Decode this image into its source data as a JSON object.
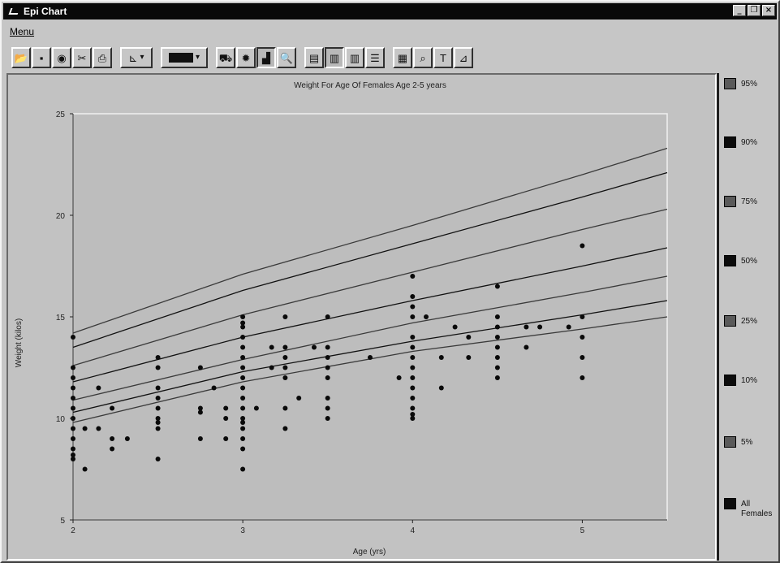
{
  "window": {
    "title": "Epi Chart",
    "minimize_glyph": "_",
    "restore_glyph": "❐",
    "close_glyph": "×"
  },
  "menu": {
    "label": "Menu"
  },
  "toolbar": {
    "buttons": [
      {
        "icon": "open-folder-icon",
        "glyph": "📂"
      },
      {
        "icon": "save-disk-icon",
        "glyph": "▪"
      },
      {
        "icon": "view-icon",
        "glyph": "◉"
      },
      {
        "icon": "cut-scissors-icon",
        "glyph": "✂"
      },
      {
        "icon": "print-icon",
        "glyph": "⎙"
      },
      {
        "icon": "axis-style-icon",
        "glyph": "⊾"
      },
      {
        "icon": "fill-color-icon",
        "glyph": ""
      },
      {
        "icon": "car-icon",
        "glyph": "⛟"
      },
      {
        "icon": "map-icon",
        "glyph": "✹"
      },
      {
        "icon": "chart-type-icon",
        "glyph": "▟"
      },
      {
        "icon": "zoom-page-icon",
        "glyph": "🔍"
      },
      {
        "icon": "page-icon",
        "glyph": "▤"
      },
      {
        "icon": "document-icon",
        "glyph": "▥"
      },
      {
        "icon": "columns-icon",
        "glyph": "▥"
      },
      {
        "icon": "list-icon",
        "glyph": "☰"
      },
      {
        "icon": "stats-icon",
        "glyph": "▦"
      },
      {
        "icon": "search-icon",
        "glyph": "⌕"
      },
      {
        "icon": "text-tool-icon",
        "glyph": "T"
      },
      {
        "icon": "measure-icon",
        "glyph": "⊿"
      }
    ]
  },
  "legend": [
    {
      "label": "95%",
      "color": "#5a5a5a"
    },
    {
      "label": "90%",
      "color": "#0c0c0c"
    },
    {
      "label": "75%",
      "color": "#5a5a5a"
    },
    {
      "label": "50%",
      "color": "#0c0c0c"
    },
    {
      "label": "25%",
      "color": "#5a5a5a"
    },
    {
      "label": "10%",
      "color": "#0c0c0c"
    },
    {
      "label": "5%",
      "color": "#5a5a5a"
    },
    {
      "label": "All Females",
      "color": "#0c0c0c"
    }
  ],
  "chart_data": {
    "type": "scatter",
    "title": "Weight For Age Of Females Age 2-5 years",
    "xlabel": "Age (yrs)",
    "ylabel": "Weight (kilos)",
    "xlim": [
      2,
      5.5
    ],
    "ylim": [
      5,
      25
    ],
    "xticks": [
      "2",
      "3",
      "4",
      "5"
    ],
    "yticks": [
      "5",
      "10",
      "15",
      "20",
      "25"
    ],
    "grid": false,
    "legend_position": "right-panel",
    "percentile_lines": [
      {
        "name": "95%",
        "x": [
          2,
          3,
          4,
          5,
          5.5
        ],
        "y": [
          14.2,
          17.1,
          19.5,
          22.0,
          23.3
        ]
      },
      {
        "name": "90%",
        "x": [
          2,
          3,
          4,
          5,
          5.5
        ],
        "y": [
          13.5,
          16.3,
          18.6,
          20.9,
          22.1
        ]
      },
      {
        "name": "75%",
        "x": [
          2,
          3,
          4,
          5,
          5.5
        ],
        "y": [
          12.6,
          15.1,
          17.2,
          19.3,
          20.3
        ]
      },
      {
        "name": "50%",
        "x": [
          2,
          3,
          4,
          5,
          5.5
        ],
        "y": [
          11.8,
          14.0,
          15.8,
          17.5,
          18.4
        ]
      },
      {
        "name": "25%",
        "x": [
          2,
          3,
          4,
          5,
          5.5
        ],
        "y": [
          10.9,
          12.9,
          14.7,
          16.2,
          17.0
        ]
      },
      {
        "name": "10%",
        "x": [
          2,
          3,
          4,
          5,
          5.5
        ],
        "y": [
          10.3,
          12.3,
          13.8,
          15.1,
          15.8
        ]
      },
      {
        "name": "5%",
        "x": [
          2,
          3,
          4,
          5,
          5.5
        ],
        "y": [
          9.8,
          11.8,
          13.3,
          14.4,
          15.0
        ]
      }
    ],
    "points": [
      [
        2,
        14
      ],
      [
        2,
        12.5
      ],
      [
        2,
        12
      ],
      [
        2,
        11.5
      ],
      [
        2,
        11
      ],
      [
        2,
        10.5
      ],
      [
        2,
        10
      ],
      [
        2,
        9.5
      ],
      [
        2,
        9
      ],
      [
        2,
        8.5
      ],
      [
        2,
        8.2
      ],
      [
        2,
        8
      ],
      [
        2.07,
        9.5
      ],
      [
        2.07,
        7.5
      ],
      [
        2.15,
        11.5
      ],
      [
        2.15,
        9.5
      ],
      [
        2.23,
        10.5
      ],
      [
        2.23,
        9
      ],
      [
        2.23,
        8.5
      ],
      [
        2.32,
        9
      ],
      [
        2.5,
        13
      ],
      [
        2.5,
        12.5
      ],
      [
        2.5,
        11.5
      ],
      [
        2.5,
        11
      ],
      [
        2.5,
        10.5
      ],
      [
        2.5,
        10
      ],
      [
        2.5,
        9.8
      ],
      [
        2.5,
        9.5
      ],
      [
        2.5,
        8
      ],
      [
        2.75,
        12.5
      ],
      [
        2.75,
        10.5
      ],
      [
        2.75,
        10.3
      ],
      [
        2.75,
        9
      ],
      [
        2.83,
        11.5
      ],
      [
        2.9,
        10.5
      ],
      [
        2.9,
        10
      ],
      [
        2.9,
        9
      ],
      [
        3,
        15
      ],
      [
        3,
        14.7
      ],
      [
        3,
        14.5
      ],
      [
        3,
        14
      ],
      [
        3,
        13.5
      ],
      [
        3,
        13
      ],
      [
        3,
        12.5
      ],
      [
        3,
        12
      ],
      [
        3,
        11.5
      ],
      [
        3,
        11
      ],
      [
        3,
        10.5
      ],
      [
        3,
        10
      ],
      [
        3,
        9.8
      ],
      [
        3,
        9.5
      ],
      [
        3,
        9
      ],
      [
        3,
        8.5
      ],
      [
        3,
        7.5
      ],
      [
        3.08,
        10.5
      ],
      [
        3.17,
        13.5
      ],
      [
        3.17,
        12.5
      ],
      [
        3.25,
        15
      ],
      [
        3.25,
        13.5
      ],
      [
        3.25,
        13
      ],
      [
        3.25,
        12.5
      ],
      [
        3.25,
        12
      ],
      [
        3.25,
        10.5
      ],
      [
        3.25,
        9.5
      ],
      [
        3.33,
        11
      ],
      [
        3.42,
        13.5
      ],
      [
        3.5,
        15
      ],
      [
        3.5,
        13.5
      ],
      [
        3.5,
        13
      ],
      [
        3.5,
        12.5
      ],
      [
        3.5,
        12
      ],
      [
        3.5,
        11
      ],
      [
        3.5,
        10.5
      ],
      [
        3.5,
        10
      ],
      [
        3.75,
        13
      ],
      [
        3.92,
        12
      ],
      [
        4,
        17
      ],
      [
        4,
        16
      ],
      [
        4,
        15.5
      ],
      [
        4,
        15
      ],
      [
        4,
        14
      ],
      [
        4,
        13.5
      ],
      [
        4,
        13
      ],
      [
        4,
        12.5
      ],
      [
        4,
        12
      ],
      [
        4,
        11.5
      ],
      [
        4,
        11
      ],
      [
        4,
        10.5
      ],
      [
        4,
        10.2
      ],
      [
        4,
        10
      ],
      [
        4.08,
        15
      ],
      [
        4.17,
        13
      ],
      [
        4.17,
        11.5
      ],
      [
        4.25,
        14.5
      ],
      [
        4.33,
        14
      ],
      [
        4.33,
        13
      ],
      [
        4.5,
        16.5
      ],
      [
        4.5,
        15
      ],
      [
        4.5,
        14.5
      ],
      [
        4.5,
        14
      ],
      [
        4.5,
        13.5
      ],
      [
        4.5,
        13
      ],
      [
        4.5,
        12.5
      ],
      [
        4.5,
        12
      ],
      [
        4.67,
        14.5
      ],
      [
        4.67,
        13.5
      ],
      [
        4.75,
        14.5
      ],
      [
        4.92,
        14.5
      ],
      [
        5,
        18.5
      ],
      [
        5,
        15
      ],
      [
        5,
        14
      ],
      [
        5,
        13
      ],
      [
        5,
        12
      ]
    ]
  }
}
